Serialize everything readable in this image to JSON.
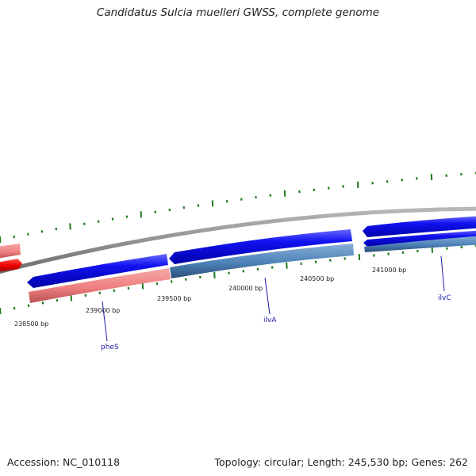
{
  "title": "Candidatus Sulcia muelleri GWSS, complete genome",
  "footer": {
    "accession": "Accession: NC_010118",
    "summary": "Topology: circular; Length: 245,530 bp; Genes: 262"
  },
  "colors": {
    "backbone": "#8a8a8a",
    "tick": "#1e7a1e",
    "forward_gene": "#0000ee",
    "reverse_gene_salmon": "#f08080",
    "reverse_gene_steel": "#4d82b8",
    "reverse_gene_red": "#ee0000",
    "gene_label": "#1a1aa6"
  },
  "scale_labels": [
    "238500 bp",
    "239000 bp",
    "239500 bp",
    "240000 bp",
    "240500 bp",
    "241000 bp"
  ],
  "gene_labels": [
    "pheS",
    "ilvA",
    "ilvC"
  ]
}
